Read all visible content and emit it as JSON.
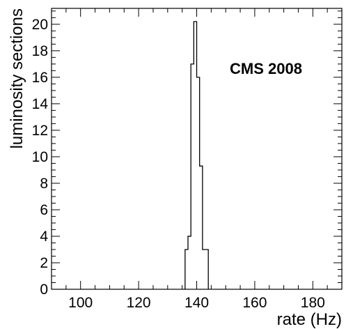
{
  "chart_data": {
    "type": "histogram",
    "xlabel": "rate (Hz)",
    "ylabel": "luminosity sections",
    "annotation": "CMS 2008",
    "xlim": [
      90,
      190
    ],
    "ylim": [
      0,
      21.2
    ],
    "x_ticks": [
      100,
      120,
      140,
      160,
      180
    ],
    "y_ticks": [
      0,
      2,
      4,
      6,
      8,
      10,
      12,
      14,
      16,
      18,
      20
    ],
    "x_tick_labels": [
      "100",
      "120",
      "140",
      "160",
      "180"
    ],
    "y_tick_labels": [
      "0",
      "2",
      "4",
      "6",
      "8",
      "10",
      "12",
      "14",
      "16",
      "18",
      "20"
    ],
    "grid": false,
    "bins": [
      {
        "x0": 136,
        "x1": 137,
        "count": 3
      },
      {
        "x0": 137,
        "x1": 138,
        "count": 4
      },
      {
        "x0": 138,
        "x1": 139,
        "count": 17
      },
      {
        "x0": 139,
        "x1": 140,
        "count": 20.2
      },
      {
        "x0": 140,
        "x1": 141,
        "count": 16
      },
      {
        "x0": 141,
        "x1": 142,
        "count": 9.3
      },
      {
        "x0": 142,
        "x1": 144,
        "count": 3
      }
    ]
  }
}
